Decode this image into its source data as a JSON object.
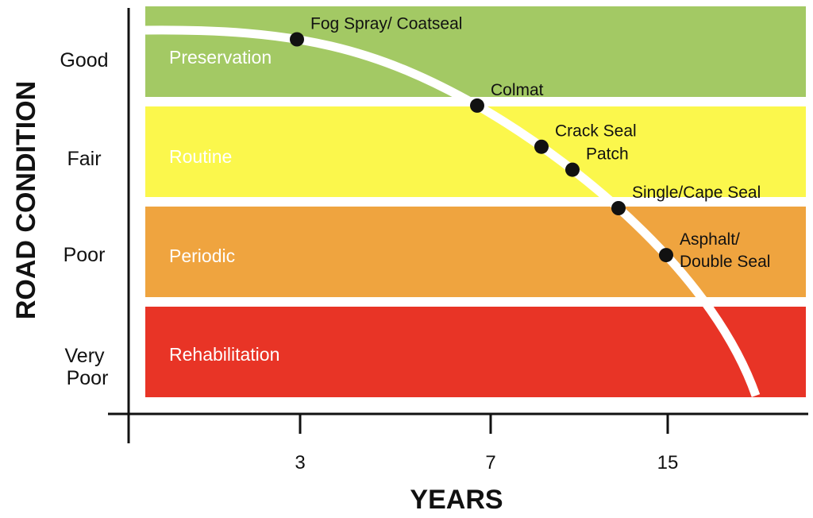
{
  "chart_data": {
    "type": "line",
    "title": "",
    "xlabel": "YEARS",
    "ylabel": "ROAD CONDITION",
    "x_ticks": [
      "3",
      "7",
      "15"
    ],
    "condition_levels": [
      {
        "key": "good",
        "lines": [
          "Good"
        ]
      },
      {
        "key": "fair",
        "lines": [
          "Fair"
        ]
      },
      {
        "key": "poor",
        "lines": [
          "Poor"
        ]
      },
      {
        "key": "very-poor",
        "lines": [
          "Very",
          "Poor"
        ]
      }
    ],
    "bands": [
      {
        "label": "Preservation",
        "level": "Good",
        "color": "#a3c964"
      },
      {
        "label": "Routine",
        "level": "Fair",
        "color": "#fbf74c"
      },
      {
        "label": "Periodic",
        "level": "Poor",
        "color": "#efa43f"
      },
      {
        "label": "Rehabilitation",
        "level": "Very Poor",
        "color": "#e83426"
      }
    ],
    "series": [
      {
        "name": "Road condition deterioration curve",
        "color": "#ffffff",
        "points": [
          {
            "label": [
              "Fog Spray/ Coatseal"
            ],
            "year": 3
          },
          {
            "label": [
              "Colmat"
            ],
            "year": 7
          },
          {
            "label": [
              "Crack Seal"
            ],
            "year": 9
          },
          {
            "label": [
              "Patch"
            ],
            "year": 10
          },
          {
            "label": [
              "Single/Cape Seal"
            ],
            "year": 12
          },
          {
            "label": [
              "Asphalt/",
              "Double Seal"
            ],
            "year": 15
          }
        ]
      }
    ]
  }
}
